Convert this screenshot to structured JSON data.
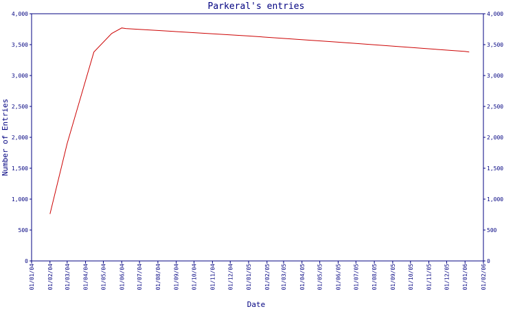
{
  "chart_data": {
    "type": "line",
    "title": "Parkeral's entries",
    "xlabel": "Date",
    "ylabel": "Number of Entries",
    "ylim": [
      0,
      4000
    ],
    "yticks": [
      "0",
      "500",
      "1,000",
      "1,500",
      "2,000",
      "2,500",
      "3,000",
      "3,500",
      "4,000"
    ],
    "ytick_values": [
      0,
      500,
      1000,
      1500,
      2000,
      2500,
      3000,
      3500,
      4000
    ],
    "xticks": [
      "01/01/04",
      "01/02/04",
      "01/03/04",
      "01/04/04",
      "01/05/04",
      "01/06/04",
      "01/07/04",
      "01/08/04",
      "01/09/04",
      "01/10/04",
      "01/11/04",
      "01/12/04",
      "01/01/05",
      "01/02/05",
      "01/03/05",
      "01/04/05",
      "01/05/05",
      "01/06/05",
      "01/07/05",
      "01/08/05",
      "01/09/05",
      "01/10/05",
      "01/11/05",
      "01/12/05",
      "01/01/06",
      "01/02/06"
    ],
    "grid": false,
    "line_color": "#cc0000",
    "axis_color": "#000080",
    "series": [
      {
        "x": [
          "2004-02-01",
          "2004-03-01",
          "2004-04-15",
          "2004-05-15",
          "2004-06-01",
          "2004-06-08",
          "2005-01-01",
          "2005-06-01",
          "2006-01-01",
          "2006-01-08"
        ],
        "values": [
          760,
          1900,
          3380,
          3680,
          3770,
          3760,
          3640,
          3540,
          3390,
          3380
        ]
      }
    ]
  }
}
